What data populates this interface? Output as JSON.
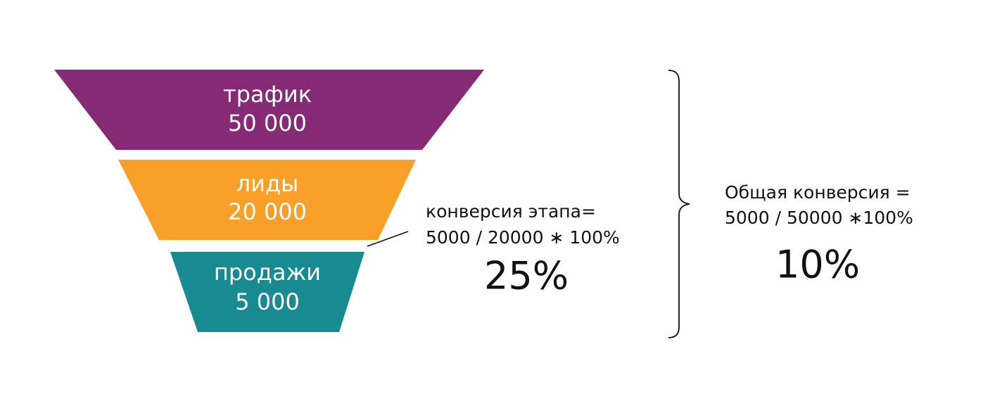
{
  "stages": [
    {
      "label": "трафик",
      "value": "50 000"
    },
    {
      "label": "лиды",
      "value": "20 000"
    },
    {
      "label": "продажи",
      "value": "5 000"
    }
  ],
  "stage_conversion": {
    "lines": [
      "конверсия этапа=",
      "5000 / 20000 ∗ 100%"
    ],
    "result": "25%"
  },
  "total_conversion": {
    "lines": [
      "Общая конверсия =",
      "5000 / 50000 ∗100%"
    ],
    "result": "10%"
  }
}
